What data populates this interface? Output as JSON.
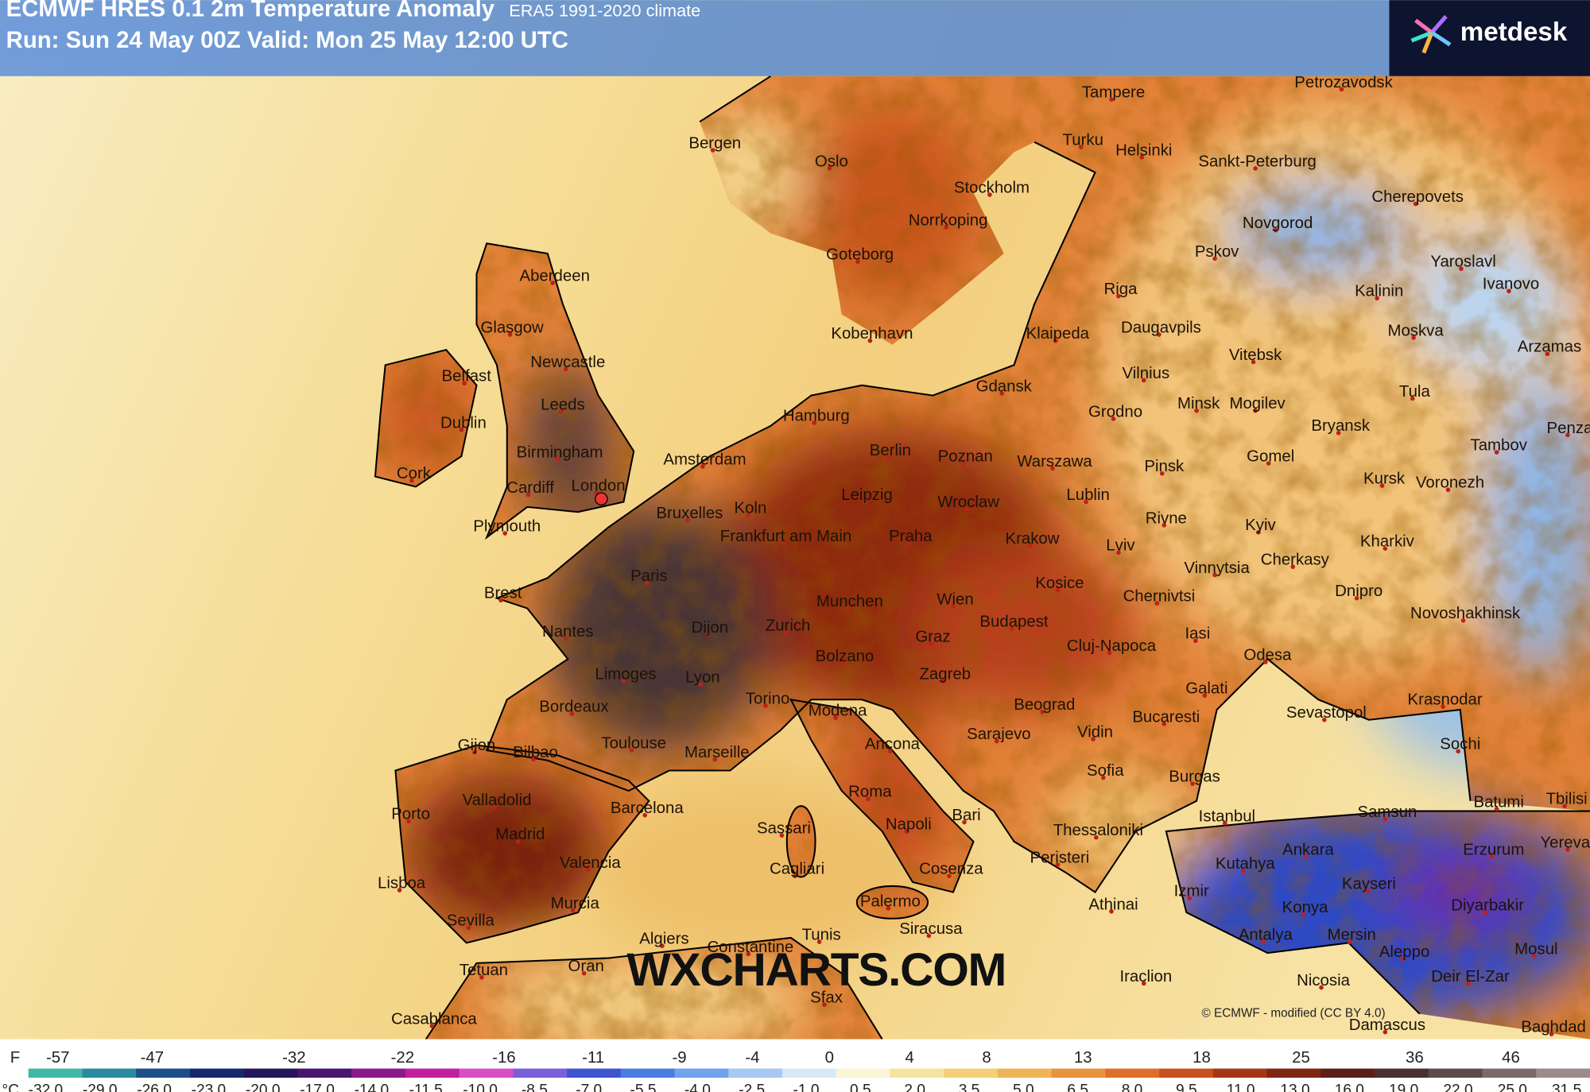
{
  "header": {
    "title": "ECMWF HRES 0.1 2m Temperature Anomaly",
    "climate": "ERA5 1991-2020 climate",
    "run": "Run: Sun 24 May 00Z Valid: Mon 25 May 12:00 UTC"
  },
  "logo": "metdesk",
  "cities": [
    "Tampere",
    "Petrozavodsk",
    "Turku",
    "Helsinki",
    "Sankt-Peterburg",
    "Bergen",
    "Oslo",
    "Stockholm",
    "Cherepovets",
    "Norrkoping",
    "Novgorod",
    "Goteborg",
    "Pskov",
    "Yaroslavl",
    "Ivanovo",
    "Kalinin",
    "Aberdeen",
    "Riga",
    "Glasgow",
    "Kobenhavn",
    "Klaipeda",
    "Daugavpils",
    "Moskva",
    "Arzamas",
    "Newcastle",
    "Vitebsk",
    "Belfast",
    "Vilnius",
    "Gdansk",
    "Tula",
    "Leeds",
    "Grodno",
    "Minsk",
    "Mogilev",
    "Hamburg",
    "Dublin",
    "Bryansk",
    "Penza",
    "Tambov",
    "Birmingham",
    "Amsterdam",
    "Berlin",
    "Poznan",
    "Warszawa",
    "Pinsk",
    "Gomel",
    "Cork",
    "Cardiff",
    "London",
    "Leipzig",
    "Wroclaw",
    "Lublin",
    "Kursk",
    "Voronezh",
    "Koln",
    "Bruxelles",
    "Plymouth",
    "Rivne",
    "Kyiv",
    "Frankfurt am Main",
    "Praha",
    "Krakow",
    "Lviv",
    "Kharkiv",
    "Cherkasy",
    "Vinnytsia",
    "Brest",
    "Paris",
    "Kosice",
    "Chernivtsi",
    "Dnipro",
    "Munchen",
    "Wien",
    "Budapest",
    "Novoshakhinsk",
    "Nantes",
    "Dijon",
    "Zurich",
    "Graz",
    "Cluj-Napoca",
    "Iasi",
    "Odesa",
    "Bolzano",
    "Limoges",
    "Lyon",
    "Zagreb",
    "Galati",
    "Krasnodar",
    "Torino",
    "Modena",
    "Beograd",
    "Bordeaux",
    "Bucaresti",
    "Sevastopol",
    "Sarajevo",
    "Vidin",
    "Ancona",
    "Gijon",
    "Bilbao",
    "Toulouse",
    "Marseille",
    "Sochi",
    "Sofia",
    "Burgas",
    "Valladolid",
    "Roma",
    "Batumi",
    "Tbilisi",
    "Porto",
    "Barcelona",
    "Bari",
    "Istanbul",
    "Samsun",
    "Madrid",
    "Napoli",
    "Sassari",
    "Thessaloniki",
    "Ankara",
    "Yerevan",
    "Erzurum",
    "Valencia",
    "Peristeri",
    "Kutahya",
    "Cagliari",
    "Cosenza",
    "Lisboa",
    "Izmir",
    "Kayseri",
    "Murcia",
    "Palermo",
    "Athinai",
    "Konya",
    "Diyarbakir",
    "Sevilla",
    "Siracusa",
    "Antalya",
    "Mersin",
    "Algiers",
    "Tunis",
    "Constantine",
    "Aleppo",
    "Mosul",
    "Tetuan",
    "Oran",
    "Iraclion",
    "Nicosia",
    "Deir El-Zar",
    "Sfax",
    "Casablanca",
    "Damascus",
    "Baghdad"
  ],
  "watermark": "WXCHARTS.COM",
  "credit": "© ECMWF - modified (CC BY 4.0)",
  "legend": {
    "f_unit": "F",
    "f_labels": [
      "-57",
      "-47",
      "-32",
      "-22",
      "-16",
      "-11",
      "-9",
      "-4",
      "0",
      "4",
      "8",
      "13",
      "18",
      "25",
      "36",
      "46"
    ],
    "c_unit": "°C",
    "c_labels": [
      "-32.0",
      "-29.0",
      "-26.0",
      "-23.0",
      "-20.0",
      "-17.0",
      "-14.0",
      "-11.5",
      "-10.0",
      "-8.5",
      "-7.0",
      "-5.5",
      "-4.0",
      "-2.5",
      "-1.0",
      "0.5",
      "2.0",
      "3.5",
      "5.0",
      "6.5",
      "8.0",
      "9.5",
      "11.0",
      "13.0",
      "16.0",
      "19.0",
      "22.0",
      "25.0",
      "31.5"
    ]
  }
}
